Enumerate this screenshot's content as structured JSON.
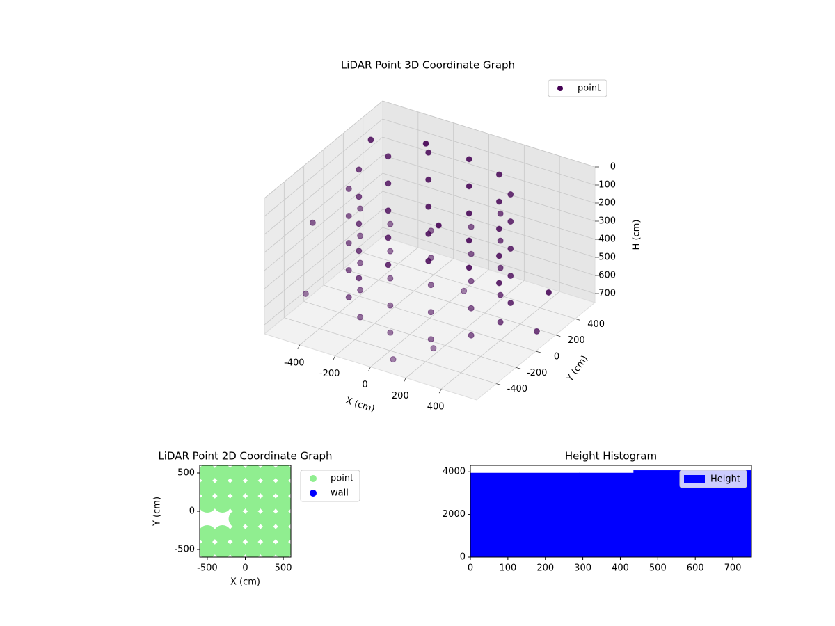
{
  "chart_data": [
    {
      "type": "scatter3d",
      "title": "LiDAR Point 3D Coordinate Graph",
      "xlabel": "X (cm)",
      "ylabel": "Y (cm)",
      "zlabel": "H (cm)",
      "xlim": [
        -600,
        600
      ],
      "ylim": [
        -600,
        600
      ],
      "zlim": [
        0,
        750
      ],
      "z_inverted": true,
      "xticks": [
        -400,
        -200,
        0,
        200,
        400
      ],
      "yticks": [
        -400,
        -200,
        0,
        200,
        400
      ],
      "zticks": [
        0,
        100,
        200,
        300,
        400,
        500,
        600,
        700
      ],
      "legend": "upper right",
      "grid": true,
      "series": [
        {
          "name": "point",
          "color": "#440154",
          "x": [
            400,
            346,
            200,
            0,
            -200,
            -346,
            -400,
            -346,
            -200,
            0,
            200,
            346,
            400,
            346,
            200,
            0,
            -200,
            -346,
            -400,
            -346,
            -200,
            0,
            200,
            346,
            400,
            346,
            200,
            0,
            -200,
            -346,
            -400,
            -346,
            -200,
            0,
            200,
            346,
            400,
            346,
            200,
            0,
            -200,
            -346,
            -400,
            -346,
            -200,
            0,
            200,
            346,
            400,
            346,
            200,
            0,
            -200,
            -346,
            -400,
            -346,
            -200,
            0,
            200,
            346,
            -500,
            -550,
            300,
            500,
            -300,
            450,
            -450,
            100,
            -200,
            550
          ],
          "y": [
            0,
            200,
            346,
            400,
            346,
            200,
            0,
            -200,
            -346,
            -400,
            -346,
            -200,
            0,
            200,
            346,
            400,
            346,
            200,
            0,
            -200,
            -346,
            -400,
            -346,
            -200,
            0,
            200,
            346,
            400,
            346,
            200,
            0,
            -200,
            -346,
            -400,
            -346,
            -200,
            0,
            200,
            346,
            400,
            346,
            200,
            0,
            -200,
            -346,
            -400,
            -346,
            -200,
            0,
            200,
            346,
            400,
            346,
            200,
            0,
            -200,
            -346,
            -400,
            -346,
            -200,
            300,
            -200,
            -500,
            -550,
            500,
            400,
            -450,
            -550,
            450,
            100
          ],
          "h": [
            50,
            50,
            50,
            50,
            50,
            50,
            50,
            50,
            50,
            50,
            50,
            50,
            200,
            200,
            200,
            200,
            200,
            200,
            200,
            200,
            200,
            200,
            200,
            200,
            350,
            350,
            350,
            350,
            350,
            350,
            350,
            350,
            350,
            350,
            350,
            350,
            500,
            500,
            500,
            500,
            500,
            500,
            500,
            500,
            500,
            500,
            500,
            500,
            650,
            650,
            650,
            650,
            650,
            650,
            650,
            650,
            650,
            650,
            650,
            650,
            50,
            300,
            600,
            200,
            100,
            650,
            550,
            700,
            500,
            700
          ]
        }
      ]
    },
    {
      "type": "scatter",
      "title": "LiDAR Point 2D Coordinate Graph",
      "xlabel": "X (cm)",
      "ylabel": "Y (cm)",
      "xlim": [
        -600,
        600
      ],
      "ylim": [
        -600,
        600
      ],
      "xticks": [
        -500,
        0,
        500
      ],
      "yticks": [
        -500,
        0,
        500
      ],
      "legend": "outside right",
      "series": [
        {
          "name": "point",
          "color": "#90ee90",
          "x": [
            -500,
            -300,
            -100,
            100,
            300,
            500,
            -500,
            -300,
            -100,
            100,
            300,
            500,
            -100,
            100,
            300,
            500,
            -500,
            -300,
            -100,
            100,
            300,
            500,
            -500,
            -300,
            -100,
            100,
            300,
            500,
            -500,
            -300,
            -100,
            100,
            300,
            500
          ],
          "y": [
            -500,
            -500,
            -500,
            -500,
            -500,
            -500,
            -300,
            -300,
            -300,
            -300,
            -300,
            -300,
            -100,
            -100,
            -100,
            -100,
            100,
            100,
            100,
            100,
            100,
            100,
            300,
            300,
            300,
            300,
            300,
            300,
            500,
            500,
            500,
            500,
            500,
            500
          ]
        },
        {
          "name": "wall",
          "color": "#0000ff",
          "x": [],
          "y": []
        }
      ]
    },
    {
      "type": "histogram",
      "title": "Height Histogram",
      "xlim": [
        0,
        750
      ],
      "ylim": [
        0,
        4300
      ],
      "xticks": [
        0,
        100,
        200,
        300,
        400,
        500,
        600,
        700
      ],
      "yticks": [
        0,
        2000,
        4000
      ],
      "legend": "upper right",
      "series": [
        {
          "name": "Height",
          "color": "#0000ff",
          "bins": [
            0,
            145,
            290,
            435,
            592.5,
            750
          ],
          "counts": [
            3950,
            3950,
            3950,
            4070,
            4070
          ]
        }
      ]
    }
  ]
}
